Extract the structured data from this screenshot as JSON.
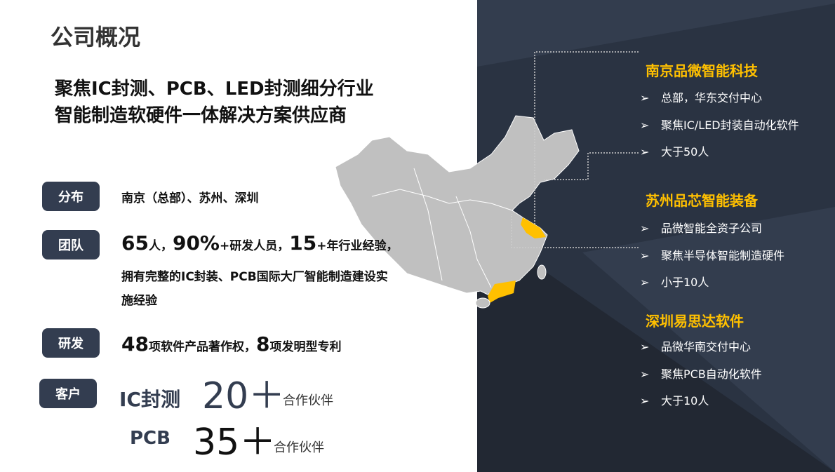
{
  "title": "公司概况",
  "subtitle": [
    "聚焦IC封测、PCB、LED封测细分行业",
    "智能制造软硬件一体解决方案供应商"
  ],
  "rows": {
    "distribution": {
      "tag": "分布",
      "text": "南京（总部）、苏州、深圳"
    },
    "team": {
      "tag": "团队",
      "n1": "65",
      "t1": "人，",
      "n2": "90%",
      "t2": "+研发人员，",
      "n3": "15",
      "t3": "+年行业经验，",
      "line2": "拥有完整的IC封装、PCB国际大厂智能制造建设实",
      "line3": "施经验"
    },
    "rnd": {
      "tag": "研发",
      "n1": "48",
      "t1": "项软件产品著作权，",
      "n2": "8",
      "t2": "项发明型专利"
    },
    "customers": {
      "tag": "客户",
      "ic_label": "IC封测",
      "ic_num": "20＋",
      "ic_unit": "合作伙伴",
      "pcb_label": "PCB",
      "pcb_num": "35＋",
      "pcb_unit": "合作伙伴"
    }
  },
  "companies": [
    {
      "name": "南京品微智能科技",
      "bullets": [
        "总部，华东交付中心",
        "聚焦IC/LED封装自动化软件",
        "大于50人"
      ]
    },
    {
      "name": "苏州品芯智能装备",
      "bullets": [
        "品微智能全资子公司",
        "聚焦半导体智能制造硬件",
        "小于10人"
      ]
    },
    {
      "name": "深圳易思达软件",
      "bullets": [
        "品微华南交付中心",
        "聚焦PCB自动化软件",
        "大于10人"
      ]
    }
  ],
  "bullet_icon": "arrow-bullet-icon",
  "colors": {
    "accent": "#ffc000",
    "dark": "#2a3342",
    "tag": "#333d50",
    "map": "#c0c0c0"
  }
}
